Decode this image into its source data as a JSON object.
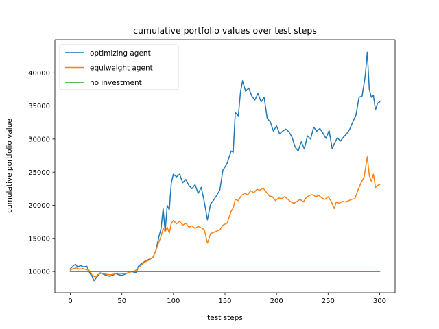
{
  "chart_data": {
    "type": "line",
    "title": "cumulative portfolio values over test steps",
    "xlabel": "test steps",
    "ylabel": "cumulative portfolio value",
    "xlim": [
      -15,
      315
    ],
    "ylim": [
      6800,
      45000
    ],
    "xticks": [
      0,
      50,
      100,
      150,
      200,
      250,
      300
    ],
    "yticks": [
      10000,
      15000,
      20000,
      25000,
      30000,
      35000,
      40000
    ],
    "grid": false,
    "legend_position": "upper-left",
    "series": [
      {
        "name": "optimizing agent",
        "color": "#1f77b4",
        "points": [
          [
            0,
            10400
          ],
          [
            3,
            10900
          ],
          [
            5,
            11100
          ],
          [
            7,
            10700
          ],
          [
            10,
            10900
          ],
          [
            13,
            10700
          ],
          [
            16,
            10800
          ],
          [
            19,
            9700
          ],
          [
            21,
            9300
          ],
          [
            23,
            8600
          ],
          [
            26,
            9200
          ],
          [
            29,
            9800
          ],
          [
            32,
            9600
          ],
          [
            35,
            9400
          ],
          [
            38,
            9300
          ],
          [
            41,
            9400
          ],
          [
            44,
            9700
          ],
          [
            47,
            9500
          ],
          [
            50,
            9400
          ],
          [
            53,
            9600
          ],
          [
            56,
            9800
          ],
          [
            59,
            10000
          ],
          [
            62,
            9900
          ],
          [
            64,
            9800
          ],
          [
            66,
            10800
          ],
          [
            69,
            11200
          ],
          [
            72,
            11500
          ],
          [
            76,
            11800
          ],
          [
            80,
            12100
          ],
          [
            83,
            13200
          ],
          [
            86,
            15300
          ],
          [
            88,
            16500
          ],
          [
            90,
            19500
          ],
          [
            92,
            16000
          ],
          [
            94,
            20000
          ],
          [
            96,
            19300
          ],
          [
            98,
            23400
          ],
          [
            100,
            24700
          ],
          [
            103,
            24300
          ],
          [
            106,
            24700
          ],
          [
            109,
            23400
          ],
          [
            112,
            23900
          ],
          [
            115,
            23000
          ],
          [
            118,
            22500
          ],
          [
            121,
            23100
          ],
          [
            124,
            21800
          ],
          [
            127,
            22700
          ],
          [
            130,
            20500
          ],
          [
            133,
            17800
          ],
          [
            136,
            20200
          ],
          [
            139,
            20800
          ],
          [
            142,
            21500
          ],
          [
            145,
            22300
          ],
          [
            148,
            25300
          ],
          [
            152,
            26300
          ],
          [
            156,
            28200
          ],
          [
            158,
            28000
          ],
          [
            160,
            34000
          ],
          [
            163,
            33500
          ],
          [
            165,
            37000
          ],
          [
            167,
            38800
          ],
          [
            170,
            37200
          ],
          [
            173,
            37700
          ],
          [
            176,
            36500
          ],
          [
            179,
            35900
          ],
          [
            182,
            36900
          ],
          [
            185,
            35600
          ],
          [
            188,
            36300
          ],
          [
            191,
            33100
          ],
          [
            194,
            32600
          ],
          [
            197,
            31200
          ],
          [
            200,
            32000
          ],
          [
            203,
            30800
          ],
          [
            206,
            31200
          ],
          [
            209,
            31500
          ],
          [
            212,
            31100
          ],
          [
            215,
            30300
          ],
          [
            218,
            28800
          ],
          [
            221,
            28200
          ],
          [
            224,
            29600
          ],
          [
            227,
            28500
          ],
          [
            230,
            30500
          ],
          [
            233,
            30000
          ],
          [
            236,
            31800
          ],
          [
            239,
            31200
          ],
          [
            242,
            31600
          ],
          [
            245,
            30900
          ],
          [
            248,
            30100
          ],
          [
            251,
            31300
          ],
          [
            254,
            28500
          ],
          [
            256,
            29300
          ],
          [
            259,
            30200
          ],
          [
            262,
            29700
          ],
          [
            265,
            30300
          ],
          [
            268,
            30800
          ],
          [
            271,
            31500
          ],
          [
            274,
            32600
          ],
          [
            277,
            33600
          ],
          [
            280,
            36300
          ],
          [
            283,
            36500
          ],
          [
            286,
            39500
          ],
          [
            288,
            43100
          ],
          [
            290,
            37500
          ],
          [
            292,
            36300
          ],
          [
            294,
            36600
          ],
          [
            296,
            34400
          ],
          [
            298,
            35400
          ],
          [
            300,
            35600
          ]
        ]
      },
      {
        "name": "equiweight agent",
        "color": "#ff7f0e",
        "points": [
          [
            0,
            10200
          ],
          [
            3,
            10450
          ],
          [
            6,
            10550
          ],
          [
            9,
            10350
          ],
          [
            12,
            10450
          ],
          [
            15,
            10300
          ],
          [
            18,
            10200
          ],
          [
            21,
            9500
          ],
          [
            24,
            9150
          ],
          [
            27,
            9550
          ],
          [
            30,
            9750
          ],
          [
            33,
            9650
          ],
          [
            36,
            9550
          ],
          [
            39,
            9500
          ],
          [
            42,
            9600
          ],
          [
            45,
            9750
          ],
          [
            48,
            9700
          ],
          [
            51,
            9650
          ],
          [
            54,
            9700
          ],
          [
            57,
            9850
          ],
          [
            60,
            10000
          ],
          [
            63,
            10100
          ],
          [
            66,
            10600
          ],
          [
            69,
            11000
          ],
          [
            72,
            11400
          ],
          [
            76,
            11700
          ],
          [
            80,
            12100
          ],
          [
            83,
            13200
          ],
          [
            86,
            14500
          ],
          [
            88,
            15300
          ],
          [
            90,
            16500
          ],
          [
            92,
            16000
          ],
          [
            94,
            16700
          ],
          [
            96,
            15800
          ],
          [
            98,
            17300
          ],
          [
            100,
            17700
          ],
          [
            103,
            17200
          ],
          [
            106,
            17600
          ],
          [
            109,
            17000
          ],
          [
            112,
            17300
          ],
          [
            115,
            16700
          ],
          [
            118,
            16900
          ],
          [
            121,
            16500
          ],
          [
            124,
            16800
          ],
          [
            127,
            16600
          ],
          [
            130,
            16300
          ],
          [
            133,
            14300
          ],
          [
            136,
            15700
          ],
          [
            139,
            15900
          ],
          [
            142,
            16100
          ],
          [
            145,
            16300
          ],
          [
            148,
            17000
          ],
          [
            152,
            17300
          ],
          [
            156,
            19100
          ],
          [
            158,
            19600
          ],
          [
            160,
            20900
          ],
          [
            163,
            20700
          ],
          [
            166,
            21500
          ],
          [
            169,
            21800
          ],
          [
            172,
            21600
          ],
          [
            175,
            22200
          ],
          [
            178,
            21900
          ],
          [
            181,
            22400
          ],
          [
            184,
            22300
          ],
          [
            187,
            22600
          ],
          [
            190,
            22000
          ],
          [
            193,
            21400
          ],
          [
            196,
            21300
          ],
          [
            199,
            20700
          ],
          [
            202,
            21100
          ],
          [
            205,
            21000
          ],
          [
            208,
            21300
          ],
          [
            211,
            20900
          ],
          [
            214,
            20500
          ],
          [
            217,
            20300
          ],
          [
            220,
            20600
          ],
          [
            223,
            20900
          ],
          [
            226,
            20500
          ],
          [
            229,
            21200
          ],
          [
            232,
            21500
          ],
          [
            235,
            21600
          ],
          [
            238,
            21300
          ],
          [
            241,
            21500
          ],
          [
            244,
            21100
          ],
          [
            247,
            20900
          ],
          [
            250,
            21300
          ],
          [
            253,
            20600
          ],
          [
            256,
            19500
          ],
          [
            258,
            20500
          ],
          [
            261,
            20300
          ],
          [
            264,
            20600
          ],
          [
            267,
            20500
          ],
          [
            270,
            20700
          ],
          [
            273,
            20900
          ],
          [
            276,
            21000
          ],
          [
            279,
            22300
          ],
          [
            282,
            23400
          ],
          [
            285,
            24300
          ],
          [
            288,
            27300
          ],
          [
            290,
            24500
          ],
          [
            292,
            23600
          ],
          [
            294,
            24700
          ],
          [
            296,
            22700
          ],
          [
            298,
            23000
          ],
          [
            300,
            23100
          ]
        ]
      },
      {
        "name": "no investment",
        "color": "#2ca02c",
        "points": [
          [
            0,
            10000
          ],
          [
            300,
            10000
          ]
        ]
      }
    ]
  }
}
